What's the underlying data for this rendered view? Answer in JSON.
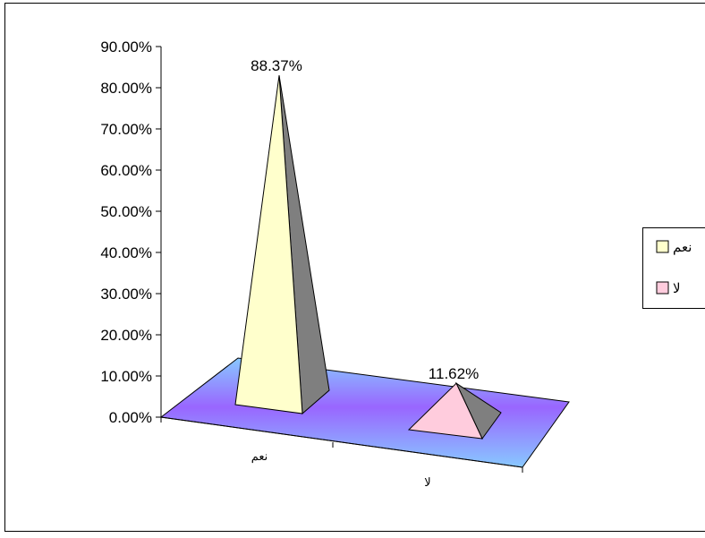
{
  "chart_data": {
    "type": "bar",
    "categories": [
      "نعم",
      "لا"
    ],
    "values": [
      88.37,
      11.62
    ],
    "data_labels": [
      "88.37%",
      "11.62%"
    ],
    "ylim": [
      0,
      90
    ],
    "y_ticks": [
      "0.00%",
      "10.00%",
      "20.00%",
      "30.00%",
      "40.00%",
      "50.00%",
      "60.00%",
      "70.00%",
      "80.00%",
      "90.00%"
    ],
    "grid": false,
    "style": "3d-pyramid",
    "legend": {
      "position": "right",
      "entries": [
        {
          "label": "نعم",
          "color": "#ffffcc"
        },
        {
          "label": "لا",
          "color": "#ffccdd"
        }
      ]
    },
    "colors": {
      "floor_light": "#88c8ff",
      "floor_dark": "#9966ff",
      "series": [
        "#ffffcc",
        "#ffccdd"
      ],
      "shadow": "#7f7f7f"
    }
  }
}
